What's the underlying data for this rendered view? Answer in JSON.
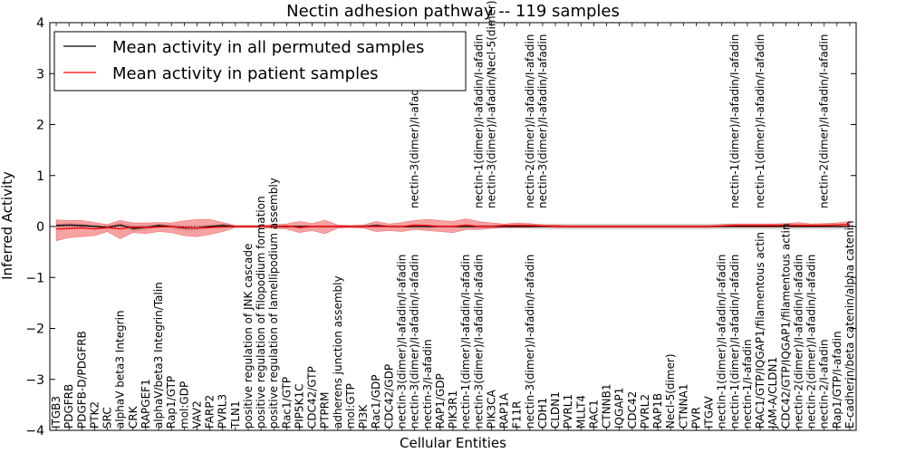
{
  "chart_data": {
    "type": "line",
    "title": "Nectin adhesion pathway -- 119 samples",
    "xlabel": "Cellular Entities",
    "ylabel": "Inferred Activity",
    "ylim": [
      -4,
      4
    ],
    "yticks": [
      -4,
      -3,
      -2,
      -1,
      0,
      1,
      2,
      3,
      4
    ],
    "yticklabels": [
      "−4",
      "−3",
      "−2",
      "−1",
      "0",
      "1",
      "2",
      "3",
      "4"
    ],
    "legend": {
      "placement": "top-left"
    },
    "categories": [
      "ITGB3",
      "PDGFRB",
      "PDGFB-D/PDGFRB",
      "PTK2",
      "SRC",
      "alphaV beta3 Integrin",
      "CRK",
      "RAPGEF1",
      "alphaV/beta3 Integrin/Talin",
      "Rap1/GTP",
      "mol:GDP",
      "VAV2",
      "FARP2",
      "PVRL3",
      "TLN1",
      "positive regulation of JNK cascade",
      "positive regulation of filopodium formation",
      "positive regulation of lamellipodium assembly",
      "Rac1/GTP",
      "PIP5K1C",
      "CDC42/GTP",
      "PTPRM",
      "adherens junction assembly",
      "mol:GTP",
      "PI3K",
      "Rac1/GDP",
      "CDC42/GDP",
      "nectin-3(dimer)/I-afadin/I-afadin",
      "nectin-3(dimer)/I-afadin/I-afadin",
      "nectin-3/I-afadin",
      "RAP1/GDP",
      "PIK3R1",
      "nectin-1(dimer)/I-afadin/I-afadin",
      "nectin-3(dimer)/I-afadin/I-afadin",
      "PIK3CA",
      "RAP1A",
      "F11R",
      "nectin-3(dimer)/I-afadin/I-afadin",
      "CDH1",
      "CLDN1",
      "PVRL1",
      "MLLT4",
      "RAC1",
      "CTNNB1",
      "IQGAP1",
      "CDC42",
      "PVRL2",
      "RAP1B",
      "Necl-5(dimer)",
      "CTNNA1",
      "PVR",
      "ITGAV",
      "nectin-1(dimer)/I-afadin/I-afadin",
      "nectin-1(dimer)/I-afadin/I-afadin",
      "nectin-1/I-afadin",
      "RAC1/GTP/IQGAP1/filamentous actin",
      "JAM-A/CLDN1",
      "CDC42/GTP/IQGAP1/filamentous actin",
      "nectin-2(dimer)/I-afadin/I-afadin",
      "nectin-2(dimer)/I-afadin/I-afadin",
      "nectin-2/I-afadin",
      "Rap1/GTP/I-afadin",
      "E-cadherin/beta catenin/alpha catenin"
    ],
    "upper_labels": [
      {
        "index": 28,
        "text": "nectin-3(dimer)/I-afadin/I-afadin"
      },
      {
        "index": 33,
        "text": "nectin-1(dimer)/I-afadin/I-afadin"
      },
      {
        "index": 34,
        "text": "nectin-3(dimer)/I-afadin/Necl-5(dimer)"
      },
      {
        "index": 37,
        "text": "nectin-2(dimer)/I-afadin/I-afadin"
      },
      {
        "index": 38,
        "text": "nectin-3(dimer)/I-afadin/I-afadin"
      },
      {
        "index": 53,
        "text": "nectin-1(dimer)/I-afadin/I-afadin"
      },
      {
        "index": 55,
        "text": "nectin-1(dimer)/I-afadin/I-afadin"
      },
      {
        "index": 60,
        "text": "nectin-2(dimer)/I-afadin/I-afadin"
      }
    ],
    "series": [
      {
        "name": "Mean activity in all permuted samples",
        "color": "#000000",
        "values": [
          0.02,
          0.03,
          0.02,
          0.0,
          -0.02,
          0.03,
          -0.04,
          -0.02,
          0.02,
          0.0,
          -0.03,
          -0.03,
          0.0,
          0.02,
          0.0,
          0.0,
          0.0,
          0.0,
          0.0,
          0.0,
          0.0,
          0.0,
          0.0,
          0.0,
          0.0,
          0.02,
          0.0,
          0.0,
          0.0,
          0.0,
          0.0,
          0.0,
          0.0,
          0.0,
          0.0,
          0.0,
          0.0,
          0.0,
          0.0,
          0.0,
          0.0,
          0.0,
          0.0,
          0.0,
          0.0,
          0.0,
          0.0,
          0.0,
          0.0,
          0.0,
          0.0,
          0.0,
          0.0,
          0.0,
          0.0,
          0.0,
          0.0,
          0.0,
          0.0,
          0.0,
          0.0,
          0.0,
          0.0
        ],
        "band": [
          0.03,
          0.04,
          0.03,
          0.03,
          0.04,
          0.04,
          0.05,
          0.04,
          0.03,
          0.03,
          0.04,
          0.04,
          0.03,
          0.03,
          0.02,
          0.02,
          0.02,
          0.02,
          0.02,
          0.02,
          0.02,
          0.02,
          0.02,
          0.02,
          0.02,
          0.02,
          0.02,
          0.02,
          0.02,
          0.02,
          0.02,
          0.02,
          0.02,
          0.03,
          0.03,
          0.03,
          0.03,
          0.04,
          0.05,
          0.05,
          0.05,
          0.05,
          0.05,
          0.05,
          0.05,
          0.05,
          0.05,
          0.05,
          0.05,
          0.05,
          0.05,
          0.05,
          0.05,
          0.05,
          0.05,
          0.05,
          0.05,
          0.05,
          0.05,
          0.05,
          0.05,
          0.05,
          0.05
        ]
      },
      {
        "name": "Mean activity in patient samples",
        "color": "#ff0000",
        "values": [
          -0.05,
          -0.04,
          -0.03,
          -0.05,
          -0.02,
          -0.05,
          -0.01,
          -0.02,
          -0.01,
          0.0,
          -0.02,
          -0.03,
          -0.02,
          -0.01,
          0.0,
          0.0,
          0.0,
          0.0,
          0.01,
          -0.02,
          0.0,
          0.0,
          0.0,
          0.0,
          0.0,
          0.0,
          0.0,
          0.0,
          0.03,
          0.02,
          0.0,
          0.0,
          0.03,
          0.0,
          0.0,
          0.02,
          0.02,
          0.02,
          0.01,
          0.0,
          0.0,
          0.0,
          0.0,
          0.0,
          0.0,
          0.0,
          0.0,
          0.0,
          0.0,
          0.0,
          0.0,
          0.0,
          0.01,
          0.02,
          0.02,
          0.02,
          0.02,
          0.03,
          0.02,
          0.02,
          0.02,
          0.03,
          0.05
        ],
        "band_upper": [
          0.13,
          0.12,
          0.12,
          0.08,
          0.04,
          0.12,
          0.07,
          0.07,
          0.08,
          0.07,
          0.11,
          0.14,
          0.14,
          0.08,
          0.02,
          0.02,
          0.02,
          0.04,
          0.05,
          0.1,
          0.06,
          0.12,
          0.03,
          0.02,
          0.03,
          0.1,
          0.05,
          0.08,
          0.12,
          0.14,
          0.12,
          0.1,
          0.15,
          0.1,
          0.07,
          0.05,
          0.07,
          0.06,
          0.03,
          0.03,
          0.02,
          0.02,
          0.02,
          0.02,
          0.02,
          0.02,
          0.02,
          0.02,
          0.02,
          0.02,
          0.02,
          0.02,
          0.04,
          0.05,
          0.05,
          0.05,
          0.05,
          0.06,
          0.08,
          0.05,
          0.06,
          0.07,
          0.1
        ],
        "band_lower": [
          -0.28,
          -0.22,
          -0.2,
          -0.18,
          -0.1,
          -0.24,
          -0.12,
          -0.14,
          -0.1,
          -0.12,
          -0.18,
          -0.2,
          -0.16,
          -0.1,
          -0.02,
          -0.02,
          -0.02,
          -0.04,
          -0.05,
          -0.12,
          -0.08,
          -0.14,
          -0.03,
          -0.02,
          -0.03,
          -0.1,
          -0.08,
          -0.1,
          -0.06,
          -0.08,
          -0.1,
          -0.12,
          -0.06,
          -0.06,
          -0.04,
          -0.02,
          -0.02,
          -0.02,
          -0.01,
          -0.02,
          -0.02,
          -0.02,
          -0.02,
          -0.02,
          -0.02,
          -0.02,
          -0.02,
          -0.02,
          -0.02,
          -0.02,
          -0.02,
          -0.02,
          -0.01,
          -0.01,
          -0.01,
          -0.01,
          -0.01,
          -0.01,
          -0.01,
          -0.01,
          -0.01,
          -0.01,
          -0.01
        ]
      }
    ]
  }
}
